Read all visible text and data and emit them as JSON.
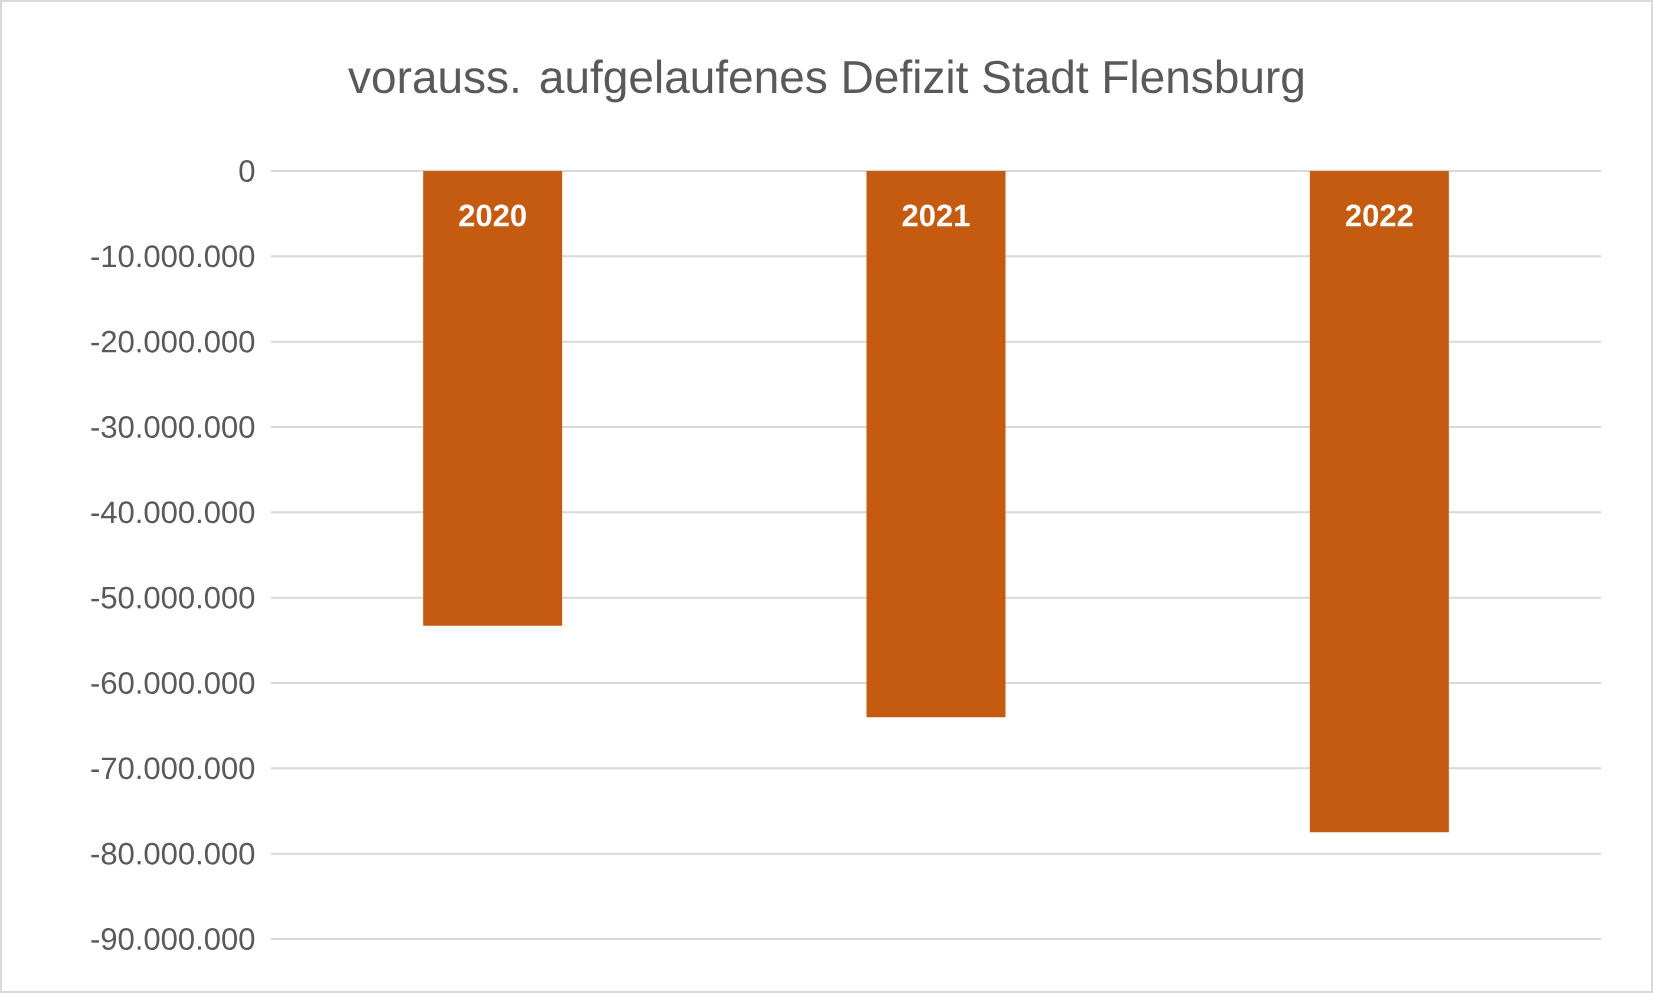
{
  "chart_data": {
    "type": "bar",
    "title": "vorauss. aufgelaufenes Defizit Stadt Flensburg",
    "categories": [
      "2020",
      "2021",
      "2022"
    ],
    "values": [
      -53300000,
      -64000000,
      -77500000
    ],
    "color": "#c55a11",
    "ylim": [
      -90000000,
      0
    ],
    "yticks": [
      {
        "value": -90000000,
        "label": "-90.000.000"
      },
      {
        "value": -80000000,
        "label": "-80.000.000"
      },
      {
        "value": -70000000,
        "label": "-70.000.000"
      },
      {
        "value": -60000000,
        "label": "-60.000.000"
      },
      {
        "value": -50000000,
        "label": "-50.000.000"
      },
      {
        "value": -40000000,
        "label": "-40.000.000"
      },
      {
        "value": -30000000,
        "label": "-30.000.000"
      },
      {
        "value": -20000000,
        "label": "-20.000.000"
      },
      {
        "value": -10000000,
        "label": "-10.000.000"
      },
      0
    ],
    "grid": "y"
  }
}
